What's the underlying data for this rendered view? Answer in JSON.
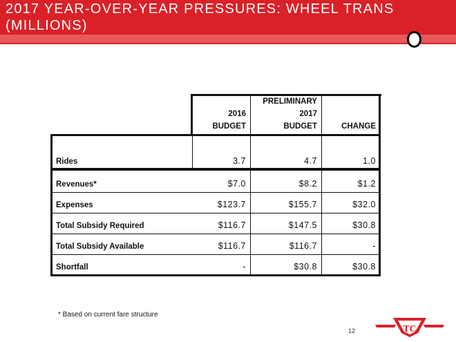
{
  "title": "2017 YEAR-OVER-YEAR PRESSURES: WHEEL TRANS (MILLIONS)",
  "columns": [
    "2016\nBUDGET",
    "PRELIMINARY\n2017\nBUDGET",
    "CHANGE"
  ],
  "rows": [
    {
      "label": "Rides",
      "values": [
        "3.7",
        "4.7",
        "1.0"
      ]
    },
    {
      "label": "Revenues*",
      "values": [
        "$7.0",
        "$8.2",
        "$1.2"
      ]
    },
    {
      "label": "Expenses",
      "values": [
        "$123.7",
        "$155.7",
        "$32.0"
      ]
    },
    {
      "label": "Total Subsidy Required",
      "values": [
        "$116.7",
        "$147.5",
        "$30.8"
      ]
    },
    {
      "label": "Total Subsidy Available",
      "values": [
        "$116.7",
        "$116.7",
        "-"
      ]
    },
    {
      "label": "Shortfall",
      "values": [
        "-",
        "$30.8",
        "$30.8"
      ]
    }
  ],
  "footnote": "* Based on current fare structure",
  "page_number": "12",
  "colors": {
    "brand_red": "#da2128"
  }
}
